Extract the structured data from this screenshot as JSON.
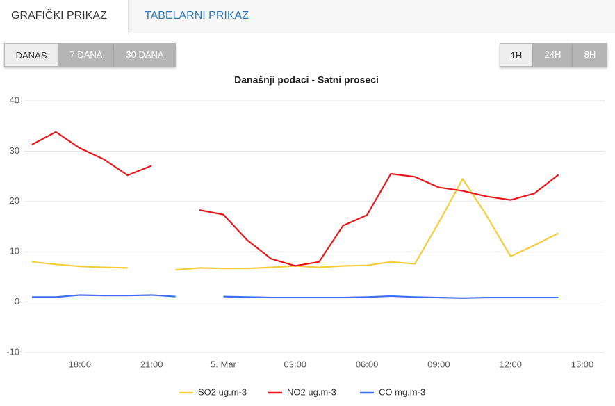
{
  "tabs": [
    "GRAFIČKI PRIKAZ",
    "TABELARNI PRIKAZ"
  ],
  "range_buttons": [
    "DANAS",
    "7 DANA",
    "30 DANA"
  ],
  "interval_buttons": [
    "1H",
    "24H",
    "8H"
  ],
  "chart_data": {
    "type": "line",
    "title": "Današnji podaci - Satni proseci",
    "categories": [
      null,
      null,
      "18:00",
      null,
      null,
      "21:00",
      null,
      null,
      "5. Mar",
      null,
      null,
      "03:00",
      null,
      null,
      "06:00",
      null,
      null,
      "09:00",
      null,
      null,
      "12:00",
      null,
      null,
      "15:00"
    ],
    "series": [
      {
        "name": "SO2 ug.m-3",
        "color": "#f5cd3a",
        "values": [
          8.0,
          7.5,
          7.1,
          6.9,
          6.8,
          null,
          6.4,
          6.8,
          6.7,
          6.7,
          6.9,
          7.2,
          6.9,
          7.2,
          7.3,
          8.0,
          7.6,
          15.8,
          24.5,
          17.2,
          9.1,
          11.3,
          13.7,
          null
        ]
      },
      {
        "name": "NO2 ug.m-3",
        "color": "#e8171b",
        "values": [
          31.3,
          33.8,
          30.6,
          28.4,
          25.2,
          27.1,
          null,
          18.3,
          17.4,
          12.3,
          8.6,
          7.2,
          8.0,
          15.2,
          17.3,
          25.5,
          24.9,
          22.8,
          22.1,
          21.0,
          20.3,
          21.6,
          25.3,
          null
        ]
      },
      {
        "name": "CO mg.m-3",
        "color": "#3d6ff0",
        "values": [
          1.0,
          1.0,
          1.4,
          1.3,
          1.3,
          1.4,
          1.1,
          null,
          1.1,
          1.0,
          0.9,
          0.9,
          0.9,
          0.9,
          1.0,
          1.2,
          1.0,
          0.9,
          0.8,
          0.9,
          0.9,
          0.9,
          0.9,
          null
        ]
      }
    ],
    "ylim": [
      -10,
      40
    ],
    "yticks": [
      -10,
      0,
      10,
      20,
      30,
      40
    ],
    "grid": true
  }
}
